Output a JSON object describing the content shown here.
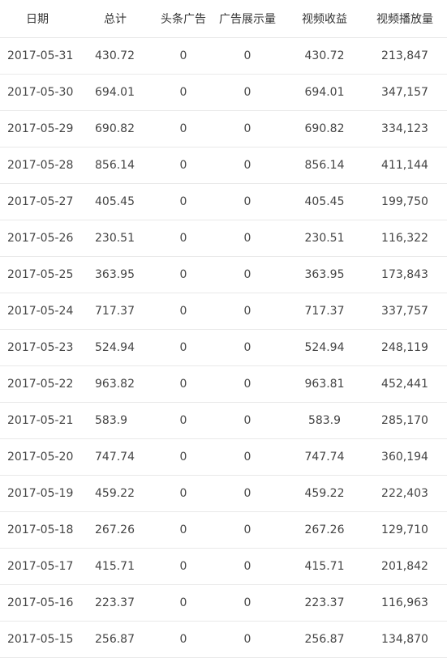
{
  "table": {
    "headers": {
      "date": "日期",
      "total": "总计",
      "headline_ads": "头条广告",
      "ad_impressions": "广告展示量",
      "video_revenue": "视频收益",
      "video_plays": "视频播放量"
    },
    "rows": [
      {
        "date": "2017-05-31",
        "total": "430.72",
        "headline_ads": "0",
        "ad_impressions": "0",
        "video_revenue": "430.72",
        "video_plays": "213,847"
      },
      {
        "date": "2017-05-30",
        "total": "694.01",
        "headline_ads": "0",
        "ad_impressions": "0",
        "video_revenue": "694.01",
        "video_plays": "347,157"
      },
      {
        "date": "2017-05-29",
        "total": "690.82",
        "headline_ads": "0",
        "ad_impressions": "0",
        "video_revenue": "690.82",
        "video_plays": "334,123"
      },
      {
        "date": "2017-05-28",
        "total": "856.14",
        "headline_ads": "0",
        "ad_impressions": "0",
        "video_revenue": "856.14",
        "video_plays": "411,144"
      },
      {
        "date": "2017-05-27",
        "total": "405.45",
        "headline_ads": "0",
        "ad_impressions": "0",
        "video_revenue": "405.45",
        "video_plays": "199,750"
      },
      {
        "date": "2017-05-26",
        "total": "230.51",
        "headline_ads": "0",
        "ad_impressions": "0",
        "video_revenue": "230.51",
        "video_plays": "116,322"
      },
      {
        "date": "2017-05-25",
        "total": "363.95",
        "headline_ads": "0",
        "ad_impressions": "0",
        "video_revenue": "363.95",
        "video_plays": "173,843"
      },
      {
        "date": "2017-05-24",
        "total": "717.37",
        "headline_ads": "0",
        "ad_impressions": "0",
        "video_revenue": "717.37",
        "video_plays": "337,757"
      },
      {
        "date": "2017-05-23",
        "total": "524.94",
        "headline_ads": "0",
        "ad_impressions": "0",
        "video_revenue": "524.94",
        "video_plays": "248,119"
      },
      {
        "date": "2017-05-22",
        "total": "963.82",
        "headline_ads": "0",
        "ad_impressions": "0",
        "video_revenue": "963.81",
        "video_plays": "452,441"
      },
      {
        "date": "2017-05-21",
        "total": "583.9",
        "headline_ads": "0",
        "ad_impressions": "0",
        "video_revenue": "583.9",
        "video_plays": "285,170"
      },
      {
        "date": "2017-05-20",
        "total": "747.74",
        "headline_ads": "0",
        "ad_impressions": "0",
        "video_revenue": "747.74",
        "video_plays": "360,194"
      },
      {
        "date": "2017-05-19",
        "total": "459.22",
        "headline_ads": "0",
        "ad_impressions": "0",
        "video_revenue": "459.22",
        "video_plays": "222,403"
      },
      {
        "date": "2017-05-18",
        "total": "267.26",
        "headline_ads": "0",
        "ad_impressions": "0",
        "video_revenue": "267.26",
        "video_plays": "129,710"
      },
      {
        "date": "2017-05-17",
        "total": "415.71",
        "headline_ads": "0",
        "ad_impressions": "0",
        "video_revenue": "415.71",
        "video_plays": "201,842"
      },
      {
        "date": "2017-05-16",
        "total": "223.37",
        "headline_ads": "0",
        "ad_impressions": "0",
        "video_revenue": "223.37",
        "video_plays": "116,963"
      },
      {
        "date": "2017-05-15",
        "total": "256.87",
        "headline_ads": "0",
        "ad_impressions": "0",
        "video_revenue": "256.87",
        "video_plays": "134,870"
      }
    ]
  }
}
